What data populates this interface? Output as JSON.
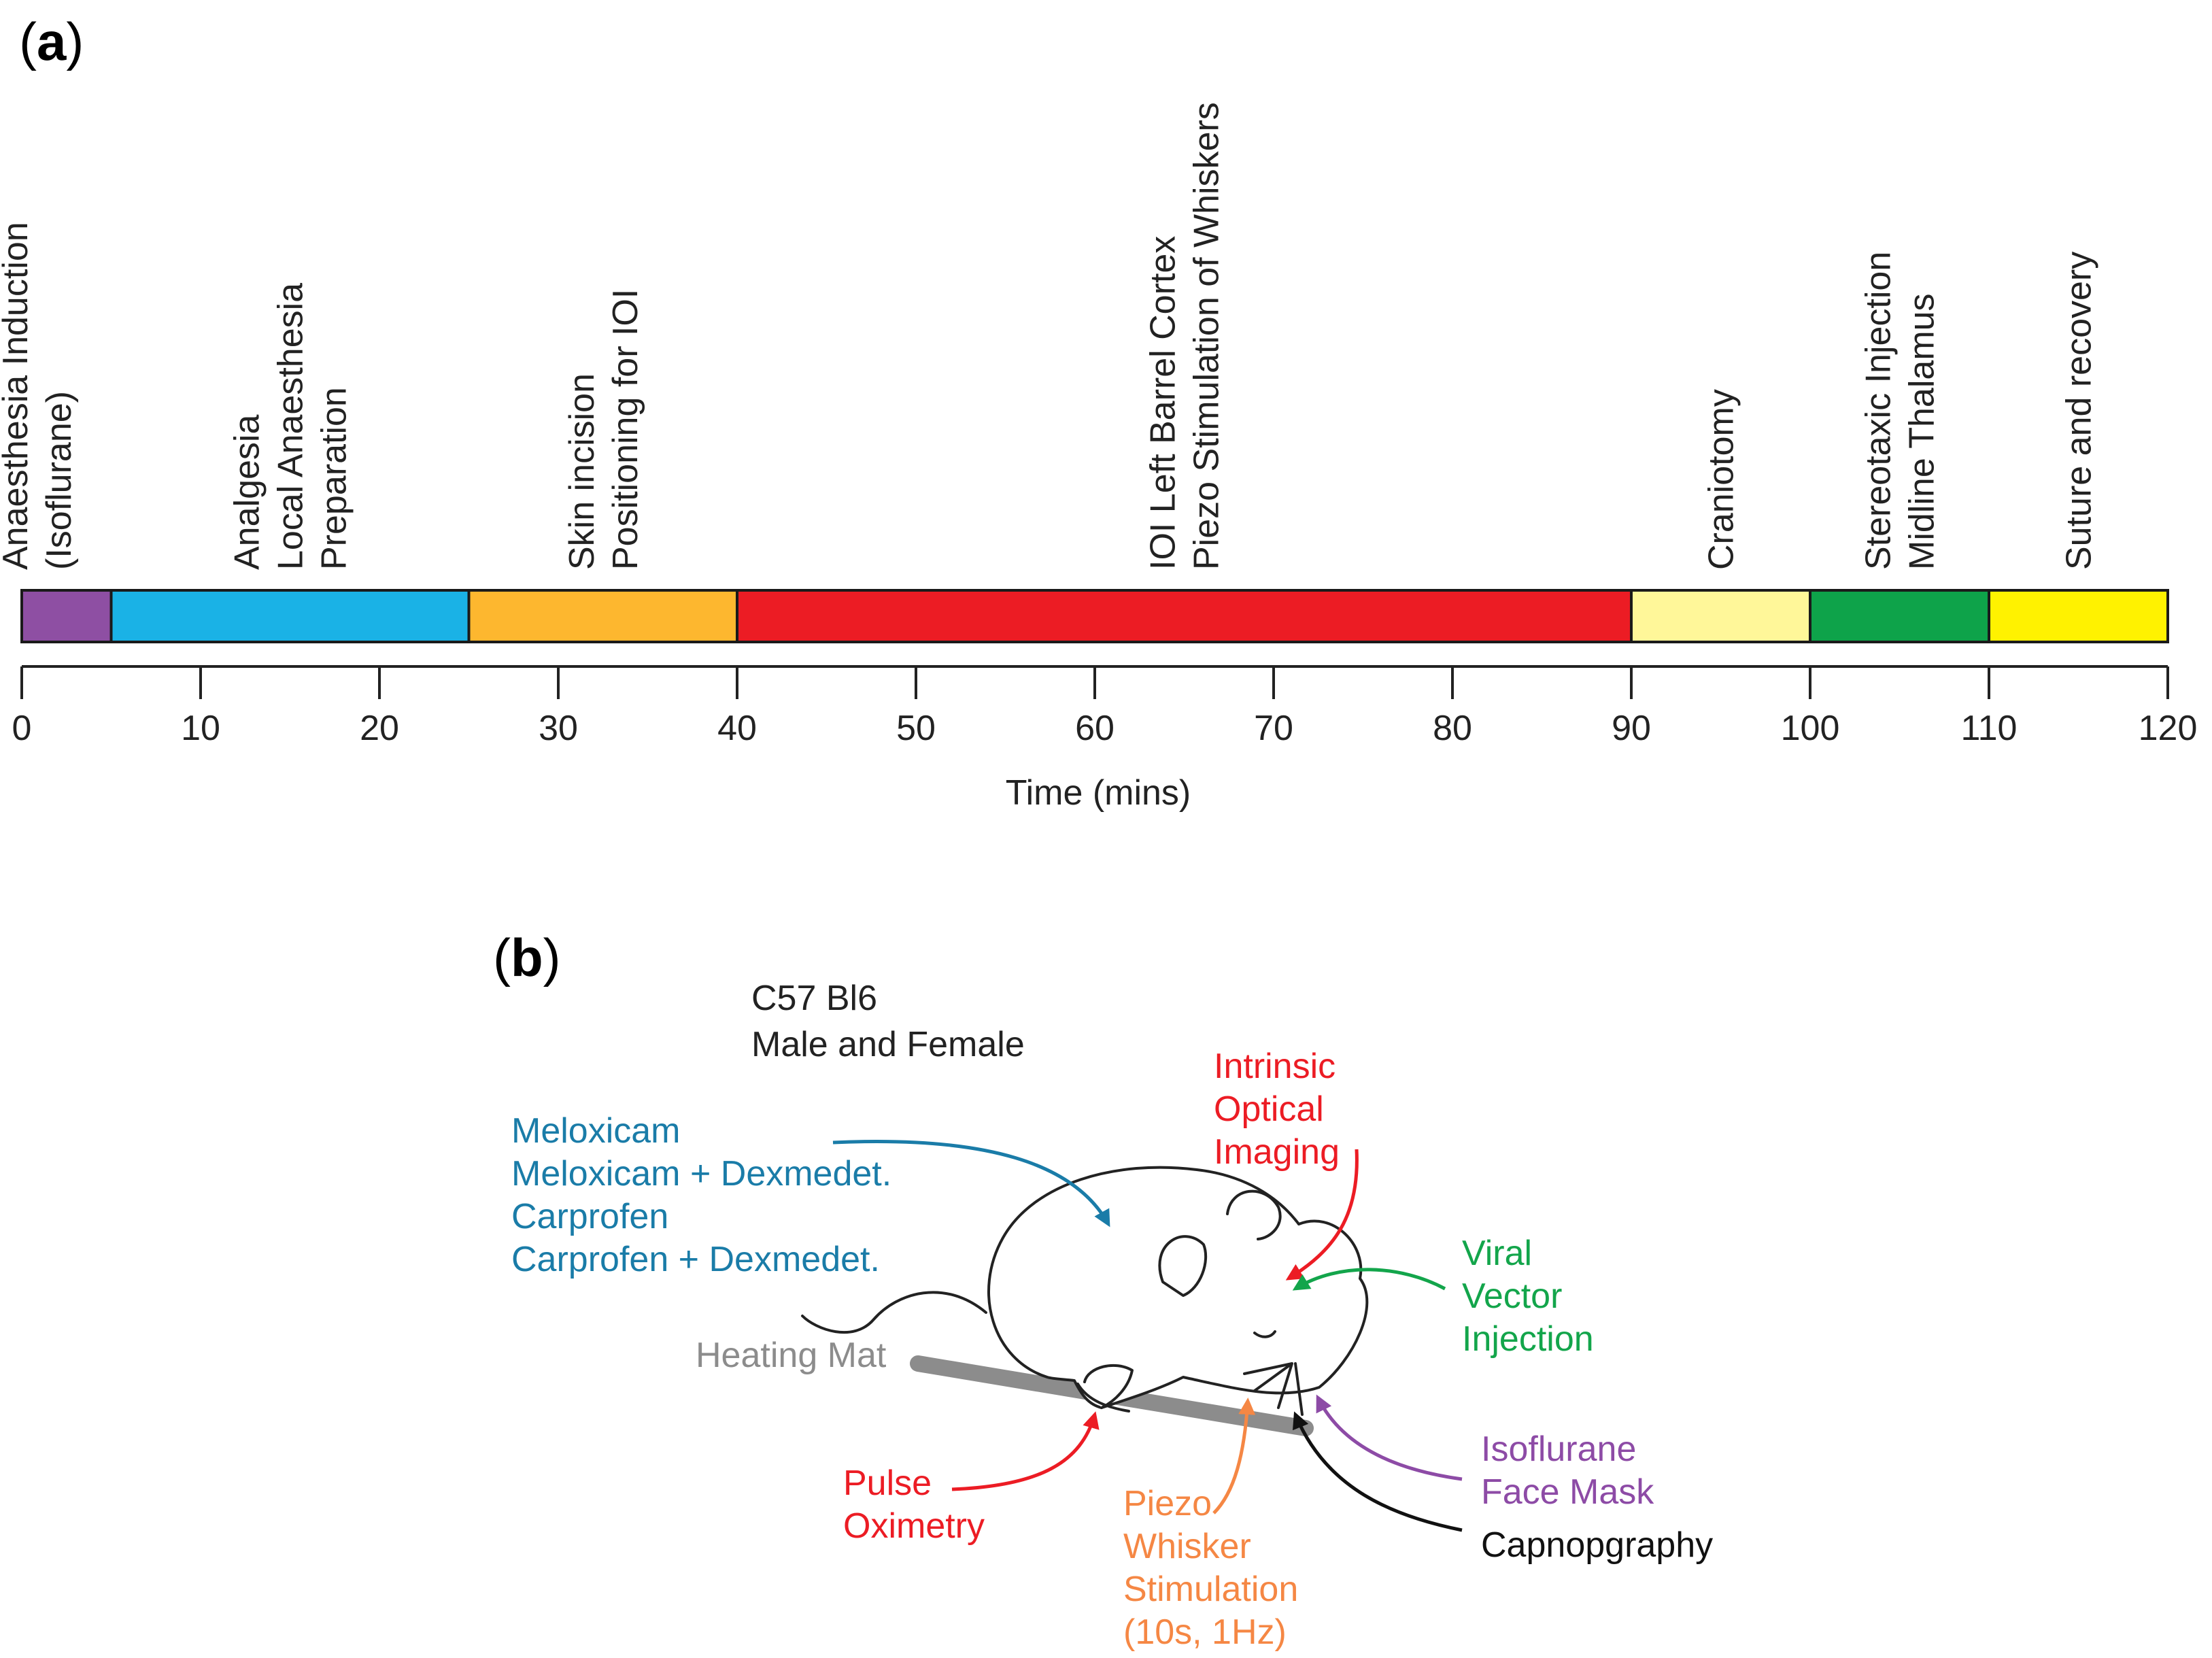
{
  "panel_a": {
    "label_open": "(",
    "letter": "a",
    "label_close": ")"
  },
  "panel_b": {
    "label_open": "(",
    "letter": "b",
    "label_close": ")"
  },
  "chart_data": {
    "type": "timeline",
    "xlabel": "Time (mins)",
    "xlim": [
      0,
      120
    ],
    "ticks": [
      0,
      10,
      20,
      30,
      40,
      50,
      60,
      70,
      80,
      90,
      100,
      110,
      120
    ],
    "phases": [
      {
        "start": 0,
        "end": 5,
        "color": "#8e4fa3",
        "lines": [
          "Anaesthesia Induction",
          "(Isoflurane)"
        ]
      },
      {
        "start": 5,
        "end": 25,
        "color": "#1ab2e6",
        "lines": [
          "Analgesia",
          "Local Anaesthesia",
          "Preparation"
        ]
      },
      {
        "start": 25,
        "end": 40,
        "color": "#fdb72f",
        "lines": [
          "Skin incision",
          "Positioning for IOI"
        ]
      },
      {
        "start": 40,
        "end": 90,
        "color": "#ec1c24",
        "lines": [
          "IOI Left Barrel Cortex",
          "Piezo Stimulation of Whiskers"
        ]
      },
      {
        "start": 90,
        "end": 100,
        "color": "#fff799",
        "lines": [
          "Craniotomy"
        ]
      },
      {
        "start": 100,
        "end": 110,
        "color": "#0ea34a",
        "lines": [
          "Stereotaxic Injection",
          "Midline Thalamus"
        ]
      },
      {
        "start": 110,
        "end": 120,
        "color": "#fff200",
        "lines": [
          "Suture and recovery"
        ]
      }
    ]
  },
  "diagram": {
    "strain": [
      "C57 Bl6",
      "Male and Female"
    ],
    "analgesics": {
      "color": "#1a7ca8",
      "lines": [
        "Meloxicam",
        "Meloxicam + Dexmedet.",
        "Carprofen",
        "Carprofen + Dexmedet."
      ]
    },
    "heating_mat": {
      "color": "#8c8c8c",
      "text": "Heating Mat"
    },
    "intrinsic": {
      "color": "#ec1c24",
      "lines": [
        "Intrinsic",
        "Optical",
        "Imaging"
      ]
    },
    "viral": {
      "color": "#13a54b",
      "lines": [
        "Viral",
        "Vector",
        "Injection"
      ]
    },
    "isoflurane": {
      "color": "#8d4ba6",
      "lines": [
        "Isoflurane",
        "Face Mask"
      ]
    },
    "capnography": {
      "color": "#111111",
      "text": "Capnopgraphy"
    },
    "pulse": {
      "color": "#ec1c24",
      "lines": [
        "Pulse",
        "Oximetry"
      ]
    },
    "piezo": {
      "color": "#f58744",
      "lines": [
        "Piezo",
        "Whisker",
        "Stimulation",
        "(10s, 1Hz)"
      ]
    }
  }
}
